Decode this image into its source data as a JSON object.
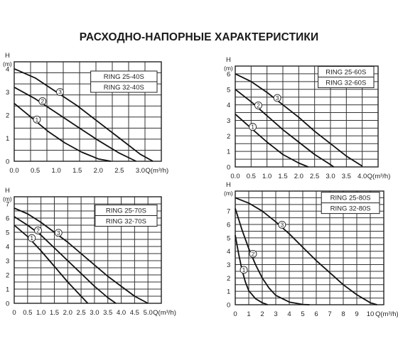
{
  "title": "РАСХОДНО-НАПОРНЫЕ ХАРАКТЕРИСТИКИ",
  "chart_data": [
    {
      "type": "line",
      "legend": [
        "RING 25-40S",
        "RING 32-40S"
      ],
      "ylabel": "H",
      "yunit": "(m)",
      "xlabel": "Q(m³/h)",
      "xlim": [
        0,
        3.5
      ],
      "ylim": [
        0,
        4.3
      ],
      "xticks": [
        "0.0",
        "0.5",
        "1.0",
        "1.5",
        "2.0",
        "2.5",
        "3.0"
      ],
      "yticks": [
        "0",
        "1",
        "2",
        "3",
        "4"
      ],
      "series": [
        {
          "label": "1",
          "points": [
            [
              0,
              2.5
            ],
            [
              0.4,
              1.9
            ],
            [
              0.8,
              1.3
            ],
            [
              1.2,
              0.8
            ],
            [
              1.6,
              0.4
            ],
            [
              2.0,
              0.1
            ],
            [
              2.3,
              0
            ]
          ]
        },
        {
          "label": "2",
          "points": [
            [
              0,
              3.2
            ],
            [
              0.5,
              2.7
            ],
            [
              1.0,
              2.1
            ],
            [
              1.5,
              1.5
            ],
            [
              2.0,
              0.9
            ],
            [
              2.5,
              0.35
            ],
            [
              2.9,
              0
            ]
          ]
        },
        {
          "label": "3",
          "points": [
            [
              0,
              4.0
            ],
            [
              0.5,
              3.6
            ],
            [
              1.0,
              3.0
            ],
            [
              1.5,
              2.4
            ],
            [
              2.0,
              1.7
            ],
            [
              2.5,
              1.0
            ],
            [
              3.0,
              0.3
            ],
            [
              3.3,
              0
            ]
          ]
        }
      ]
    },
    {
      "type": "line",
      "legend": [
        "RING 25-60S",
        "RING 32-60S"
      ],
      "ylabel": "H",
      "yunit": "(m)",
      "xlabel": "Q(m³/h)",
      "xlim": [
        0,
        4.5
      ],
      "ylim": [
        0,
        6.5
      ],
      "xticks": [
        "0.0",
        "0.5",
        "1.0",
        "1.5",
        "2.0",
        "2.5",
        "3.0",
        "3.5",
        "4.0"
      ],
      "yticks": [
        "0",
        "1",
        "2",
        "3",
        "4",
        "5",
        "6"
      ],
      "series": [
        {
          "label": "1",
          "points": [
            [
              0,
              3.4
            ],
            [
              0.5,
              2.5
            ],
            [
              1.0,
              1.6
            ],
            [
              1.5,
              0.8
            ],
            [
              2.0,
              0.25
            ],
            [
              2.3,
              0
            ]
          ]
        },
        {
          "label": "2",
          "points": [
            [
              0,
              5.0
            ],
            [
              0.5,
              4.2
            ],
            [
              1.0,
              3.3
            ],
            [
              1.5,
              2.4
            ],
            [
              2.0,
              1.6
            ],
            [
              2.5,
              0.8
            ],
            [
              3.0,
              0.15
            ],
            [
              3.1,
              0
            ]
          ]
        },
        {
          "label": "3",
          "points": [
            [
              0,
              6.0
            ],
            [
              0.5,
              5.5
            ],
            [
              1.0,
              4.8
            ],
            [
              1.5,
              4.0
            ],
            [
              2.0,
              3.2
            ],
            [
              2.5,
              2.3
            ],
            [
              3.0,
              1.5
            ],
            [
              3.5,
              0.7
            ],
            [
              4.0,
              0.05
            ]
          ]
        }
      ]
    },
    {
      "type": "line",
      "legend": [
        "RING 25-70S",
        "RING 32-70S"
      ],
      "ylabel": "H",
      "yunit": "(m)",
      "xlabel": "Q(m³/h)",
      "xlim": [
        0,
        5.5
      ],
      "ylim": [
        0,
        7.5
      ],
      "xticks": [
        "0",
        "0.5",
        "1.0",
        "1.5",
        "2.0",
        "2.5",
        "3.0",
        "3.5",
        "4.0",
        "4.5",
        "5.0"
      ],
      "yticks": [
        "0",
        "1",
        "2",
        "3",
        "4",
        "5",
        "6",
        "7"
      ],
      "series": [
        {
          "label": "1",
          "points": [
            [
              0,
              5.5
            ],
            [
              0.5,
              4.7
            ],
            [
              1.0,
              3.7
            ],
            [
              1.5,
              2.6
            ],
            [
              2.0,
              1.5
            ],
            [
              2.5,
              0.5
            ],
            [
              2.75,
              0
            ]
          ]
        },
        {
          "label": "2",
          "points": [
            [
              0,
              6.1
            ],
            [
              0.5,
              5.5
            ],
            [
              1.0,
              4.8
            ],
            [
              1.5,
              3.9
            ],
            [
              2.0,
              3.0
            ],
            [
              2.5,
              2.1
            ],
            [
              3.0,
              1.2
            ],
            [
              3.5,
              0.4
            ],
            [
              3.8,
              0
            ]
          ]
        },
        {
          "label": "3",
          "points": [
            [
              0,
              6.7
            ],
            [
              0.5,
              6.3
            ],
            [
              1.0,
              5.7
            ],
            [
              1.5,
              5.0
            ],
            [
              2.0,
              4.3
            ],
            [
              2.5,
              3.5
            ],
            [
              3.0,
              2.7
            ],
            [
              3.5,
              1.9
            ],
            [
              4.0,
              1.2
            ],
            [
              4.5,
              0.5
            ],
            [
              5.0,
              0
            ]
          ]
        }
      ]
    },
    {
      "type": "line",
      "legend": [
        "RING 25-80S",
        "RING 32-80S"
      ],
      "ylabel": "H",
      "yunit": "(m)",
      "xlabel": "Q(m³/h)",
      "xlim": [
        0,
        11
      ],
      "ylim": [
        0,
        8.5
      ],
      "xticks": [
        "0",
        "1",
        "2",
        "3",
        "4",
        "5",
        "6",
        "7",
        "8",
        "9",
        "10"
      ],
      "yticks": [
        "0",
        "1",
        "2",
        "3",
        "4",
        "5",
        "6",
        "7"
      ],
      "series": [
        {
          "label": "1",
          "points": [
            [
              0,
              5.2
            ],
            [
              0.25,
              3.8
            ],
            [
              0.5,
              2.6
            ],
            [
              0.75,
              1.7
            ],
            [
              1.0,
              1.05
            ],
            [
              1.5,
              0.45
            ],
            [
              2.0,
              0.15
            ],
            [
              2.4,
              0
            ]
          ]
        },
        {
          "label": "2",
          "points": [
            [
              0,
              7.2
            ],
            [
              0.5,
              5.6
            ],
            [
              1.0,
              4.2
            ],
            [
              1.5,
              3.0
            ],
            [
              2.0,
              2.0
            ],
            [
              2.5,
              1.25
            ],
            [
              3.0,
              0.7
            ],
            [
              4.0,
              0.2
            ],
            [
              5.0,
              0.02
            ],
            [
              5.5,
              0
            ]
          ]
        },
        {
          "label": "3",
          "points": [
            [
              0,
              8.0
            ],
            [
              1,
              7.6
            ],
            [
              2,
              7.0
            ],
            [
              3,
              6.2
            ],
            [
              4,
              5.3
            ],
            [
              5,
              4.3
            ],
            [
              6,
              3.3
            ],
            [
              7,
              2.4
            ],
            [
              8,
              1.5
            ],
            [
              9,
              0.75
            ],
            [
              10,
              0.15
            ],
            [
              10.5,
              0
            ]
          ]
        }
      ]
    }
  ]
}
